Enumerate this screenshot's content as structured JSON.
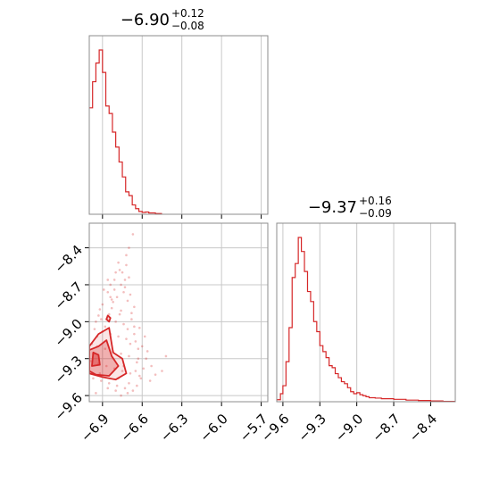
{
  "chart_data": [
    {
      "type": "histogram",
      "panel": "top-left",
      "title": {
        "main": "−6.90",
        "plus": "+0.12",
        "minus": "−0.08"
      },
      "xlim": [
        -7.0,
        -5.65
      ],
      "xticks": [
        -6.9,
        -6.6,
        -6.3,
        -6.0,
        -5.7
      ],
      "grid": true,
      "color": "#d62728",
      "bin_edges": [
        -7.0,
        -6.975,
        -6.95,
        -6.925,
        -6.9,
        -6.875,
        -6.85,
        -6.825,
        -6.8,
        -6.775,
        -6.75,
        -6.725,
        -6.7,
        -6.675,
        -6.65,
        -6.625,
        -6.6,
        -6.575,
        -6.55,
        -6.5,
        -6.45
      ],
      "counts": [
        0.57,
        0.71,
        0.81,
        0.88,
        0.76,
        0.58,
        0.54,
        0.44,
        0.36,
        0.28,
        0.2,
        0.12,
        0.1,
        0.05,
        0.03,
        0.015,
        0.01,
        0.012,
        0.007,
        0.004
      ]
    },
    {
      "type": "scatter",
      "panel": "bottom-left",
      "xlabel": "",
      "ylabel": "",
      "xlim": [
        -7.0,
        -5.65
      ],
      "ylim": [
        -9.65,
        -8.2
      ],
      "xticks": [
        -6.9,
        -6.6,
        -6.3,
        -6.0,
        -5.7
      ],
      "yticks": [
        -8.4,
        -8.7,
        -9.0,
        -9.3,
        -9.6
      ],
      "grid": true,
      "color": "#d62728",
      "contours": [
        {
          "level": "outer",
          "points": [
            [
              -7.0,
              -9.42
            ],
            [
              -7.0,
              -9.2
            ],
            [
              -6.93,
              -9.1
            ],
            [
              -6.85,
              -9.05
            ],
            [
              -6.82,
              -9.25
            ],
            [
              -6.75,
              -9.3
            ],
            [
              -6.72,
              -9.42
            ],
            [
              -6.8,
              -9.47
            ],
            [
              -6.9,
              -9.45
            ]
          ]
        },
        {
          "level": "middle",
          "points": [
            [
              -7.0,
              -9.4
            ],
            [
              -7.0,
              -9.23
            ],
            [
              -6.93,
              -9.2
            ],
            [
              -6.87,
              -9.15
            ],
            [
              -6.83,
              -9.28
            ],
            [
              -6.78,
              -9.36
            ],
            [
              -6.85,
              -9.44
            ],
            [
              -6.95,
              -9.43
            ]
          ]
        },
        {
          "level": "inner",
          "points": [
            [
              -6.98,
              -9.36
            ],
            [
              -6.97,
              -9.25
            ],
            [
              -6.93,
              -9.27
            ],
            [
              -6.92,
              -9.35
            ]
          ]
        },
        {
          "level": "island",
          "points": [
            [
              -6.86,
              -8.95
            ],
            [
              -6.84,
              -8.97
            ],
            [
              -6.85,
              -9.0
            ],
            [
              -6.87,
              -8.98
            ]
          ]
        }
      ],
      "samples": [
        [
          -6.67,
          -8.29
        ],
        [
          -6.7,
          -8.4
        ],
        [
          -6.72,
          -8.46
        ],
        [
          -6.78,
          -8.52
        ],
        [
          -6.75,
          -8.6
        ],
        [
          -6.81,
          -8.66
        ],
        [
          -6.84,
          -8.7
        ],
        [
          -6.73,
          -8.72
        ],
        [
          -6.86,
          -8.76
        ],
        [
          -6.79,
          -8.8
        ],
        [
          -6.71,
          -8.83
        ],
        [
          -6.9,
          -8.86
        ],
        [
          -6.83,
          -8.89
        ],
        [
          -6.76,
          -8.91
        ],
        [
          -6.68,
          -8.93
        ],
        [
          -6.93,
          -8.95
        ],
        [
          -6.87,
          -8.98
        ],
        [
          -6.8,
          -9.0
        ],
        [
          -6.74,
          -9.02
        ],
        [
          -6.66,
          -9.04
        ],
        [
          -6.96,
          -9.06
        ],
        [
          -6.9,
          -9.08
        ],
        [
          -6.84,
          -9.1
        ],
        [
          -6.78,
          -9.12
        ],
        [
          -6.72,
          -9.14
        ],
        [
          -6.65,
          -9.16
        ],
        [
          -6.98,
          -9.18
        ],
        [
          -6.94,
          -9.2
        ],
        [
          -6.88,
          -9.22
        ],
        [
          -6.82,
          -9.24
        ],
        [
          -6.76,
          -9.26
        ],
        [
          -6.7,
          -9.28
        ],
        [
          -6.63,
          -9.3
        ],
        [
          -6.99,
          -9.32
        ],
        [
          -6.93,
          -9.34
        ],
        [
          -6.87,
          -9.36
        ],
        [
          -6.81,
          -9.38
        ],
        [
          -6.75,
          -9.4
        ],
        [
          -6.69,
          -9.42
        ],
        [
          -6.62,
          -9.44
        ],
        [
          -6.97,
          -9.46
        ],
        [
          -6.91,
          -9.48
        ],
        [
          -6.85,
          -9.5
        ],
        [
          -6.79,
          -9.52
        ],
        [
          -6.73,
          -9.54
        ],
        [
          -6.67,
          -9.56
        ],
        [
          -6.95,
          -9.58
        ],
        [
          -6.83,
          -8.82
        ],
        [
          -6.77,
          -8.94
        ],
        [
          -6.71,
          -9.06
        ],
        [
          -6.69,
          -9.18
        ],
        [
          -6.64,
          -9.33
        ],
        [
          -6.61,
          -9.46
        ],
        [
          -6.74,
          -8.76
        ],
        [
          -6.8,
          -8.6
        ],
        [
          -6.86,
          -8.66
        ],
        [
          -6.89,
          -8.74
        ],
        [
          -6.92,
          -8.9
        ],
        [
          -6.95,
          -9.0
        ],
        [
          -6.68,
          -8.98
        ],
        [
          -6.66,
          -9.1
        ],
        [
          -6.63,
          -9.22
        ],
        [
          -6.59,
          -9.38
        ],
        [
          -6.57,
          -9.3
        ],
        [
          -6.54,
          -9.48
        ],
        [
          -6.5,
          -9.43
        ],
        [
          -6.72,
          -8.54
        ],
        [
          -6.7,
          -8.64
        ],
        [
          -6.76,
          -8.7
        ],
        [
          -6.82,
          -8.84
        ],
        [
          -6.85,
          -8.94
        ],
        [
          -6.88,
          -9.04
        ],
        [
          -6.74,
          -9.36
        ],
        [
          -6.78,
          -9.46
        ],
        [
          -6.8,
          -9.56
        ],
        [
          -6.7,
          -9.5
        ],
        [
          -6.65,
          -9.4
        ],
        [
          -6.6,
          -9.2
        ],
        [
          -6.58,
          -9.12
        ],
        [
          -6.56,
          -9.24
        ],
        [
          -6.53,
          -9.36
        ],
        [
          -6.45,
          -9.4
        ],
        [
          -6.42,
          -9.28
        ],
        [
          -6.62,
          -9.05
        ],
        [
          -6.66,
          -8.88
        ],
        [
          -6.69,
          -8.78
        ],
        [
          -6.73,
          -8.66
        ],
        [
          -6.77,
          -8.58
        ],
        [
          -6.81,
          -8.74
        ],
        [
          -6.84,
          -8.8
        ],
        [
          -6.91,
          -8.98
        ],
        [
          -6.94,
          -9.12
        ],
        [
          -6.97,
          -9.26
        ],
        [
          -6.92,
          -9.42
        ],
        [
          -6.86,
          -9.54
        ],
        [
          -6.76,
          -9.6
        ],
        [
          -6.71,
          -9.58
        ],
        [
          -6.64,
          -9.52
        ]
      ]
    },
    {
      "type": "histogram",
      "panel": "bottom-right",
      "title": {
        "main": "−9.37",
        "plus": "+0.16",
        "minus": "−0.09"
      },
      "xlim": [
        -9.65,
        -8.2
      ],
      "xticks": [
        -9.6,
        -9.3,
        -9.0,
        -8.7,
        -8.4
      ],
      "grid": true,
      "color": "#d62728",
      "bin_edges": [
        -9.65,
        -9.62,
        -9.6,
        -9.575,
        -9.55,
        -9.525,
        -9.5,
        -9.475,
        -9.45,
        -9.425,
        -9.4,
        -9.375,
        -9.35,
        -9.325,
        -9.3,
        -9.275,
        -9.25,
        -9.225,
        -9.2,
        -9.175,
        -9.15,
        -9.125,
        -9.1,
        -9.075,
        -9.05,
        -9.025,
        -9.0,
        -8.975,
        -8.95,
        -8.925,
        -8.9,
        -8.85,
        -8.8,
        -8.7,
        -8.6,
        -8.5,
        -8.4,
        -8.3,
        -8.2
      ],
      "counts": [
        0.01,
        0.04,
        0.08,
        0.2,
        0.37,
        0.62,
        0.69,
        0.82,
        0.75,
        0.65,
        0.55,
        0.5,
        0.4,
        0.35,
        0.28,
        0.25,
        0.22,
        0.18,
        0.17,
        0.14,
        0.12,
        0.1,
        0.09,
        0.07,
        0.05,
        0.04,
        0.045,
        0.035,
        0.03,
        0.025,
        0.02,
        0.018,
        0.015,
        0.012,
        0.008,
        0.006,
        0.004,
        0.002
      ]
    }
  ]
}
